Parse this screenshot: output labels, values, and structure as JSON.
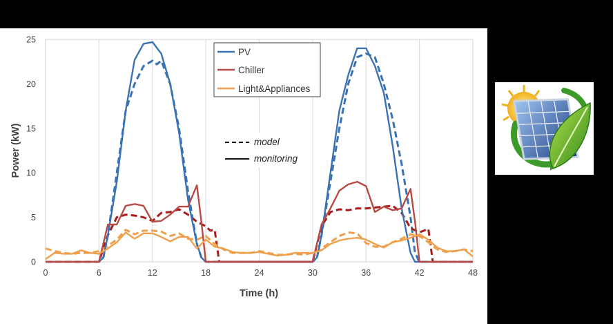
{
  "chart_data": {
    "type": "line",
    "xlabel": "Time (h)",
    "ylabel": "Power (kW)",
    "xlim": [
      0,
      48
    ],
    "ylim": [
      0,
      25
    ],
    "xticks": [
      0,
      6,
      12,
      18,
      24,
      30,
      36,
      42,
      48
    ],
    "yticks": [
      0,
      5,
      10,
      15,
      20,
      25
    ],
    "grid": "vertical",
    "legend_series": [
      "PV",
      "Chiller",
      "Light&Appliances"
    ],
    "legend_style": [
      "model",
      "monitoring"
    ],
    "series": [
      {
        "name": "PV",
        "style": "monitoring",
        "color": "#3a72b4",
        "x": [
          0,
          1,
          2,
          3,
          4,
          5,
          6,
          6.5,
          7,
          8,
          9,
          10,
          11,
          12,
          13,
          14,
          15,
          16,
          17,
          17.5,
          18,
          19,
          20,
          21,
          22,
          23,
          24,
          25,
          26,
          27,
          28,
          29,
          30,
          30.5,
          31,
          32,
          33,
          34,
          35,
          36,
          37,
          38,
          39,
          40,
          41,
          41.5,
          42,
          43,
          44,
          45,
          46,
          47,
          48
        ],
        "y": [
          0,
          0,
          0,
          0,
          0,
          0,
          0,
          0.5,
          3,
          9,
          17,
          22.7,
          24.5,
          24.7,
          23.4,
          20,
          14.5,
          7,
          2,
          0.5,
          0,
          0,
          0,
          0,
          0,
          0,
          0,
          0,
          0,
          0,
          0,
          0,
          0,
          0.5,
          3,
          10,
          17,
          21,
          24,
          24,
          22,
          19,
          13,
          6,
          1,
          0,
          0,
          0,
          0,
          0,
          0,
          0,
          0
        ]
      },
      {
        "name": "PV",
        "style": "model",
        "color": "#3a72b4",
        "x": [
          0,
          1,
          2,
          3,
          4,
          5,
          6,
          6.5,
          7,
          8,
          9,
          10,
          11,
          12,
          12.5,
          13,
          14,
          15,
          16,
          17,
          17.5,
          18,
          19,
          20,
          21,
          22,
          23,
          24,
          25,
          26,
          27,
          28,
          29,
          30,
          30.5,
          31,
          32,
          33,
          34,
          35,
          36,
          37,
          38,
          39,
          40,
          41,
          41.5,
          42,
          43,
          44,
          45,
          46,
          47,
          48
        ],
        "y": [
          0,
          0,
          0,
          0,
          0,
          0,
          0,
          0.5,
          3,
          10,
          17,
          20,
          22,
          22.6,
          22.2,
          22.6,
          20,
          15,
          8,
          2,
          0.5,
          0,
          0,
          0,
          0,
          0,
          0,
          0,
          0,
          0,
          0,
          0,
          0,
          0,
          0.5,
          3,
          9,
          15,
          20,
          23,
          23.4,
          23,
          20,
          16,
          11,
          5,
          1,
          0,
          0,
          0,
          0,
          0,
          0,
          0
        ]
      },
      {
        "name": "Chiller",
        "style": "monitoring",
        "color": "#b84a45",
        "x": [
          0,
          1,
          2,
          3,
          4,
          5,
          6,
          7,
          8,
          9,
          10,
          11,
          12,
          13,
          14,
          15,
          16,
          17,
          17.5,
          18,
          19,
          20,
          21,
          22,
          23,
          24,
          25,
          26,
          27,
          28,
          29,
          30,
          31,
          32,
          33,
          34,
          35,
          36,
          37,
          38,
          39,
          40,
          41,
          41.5,
          42,
          43,
          44,
          45,
          46,
          47,
          48
        ],
        "y": [
          0,
          0,
          0,
          0,
          0,
          0,
          0,
          4.2,
          4.2,
          6.3,
          6.5,
          6.3,
          4.5,
          4.6,
          5.3,
          6.2,
          6.2,
          8.6,
          4.5,
          0,
          0,
          0,
          0,
          0,
          0,
          0,
          0,
          0,
          0,
          0,
          0,
          0,
          4.2,
          6,
          8,
          8.7,
          9,
          8.5,
          5.6,
          6.2,
          5.8,
          6,
          8.2,
          4.5,
          0,
          0,
          0,
          0,
          0,
          0,
          0
        ]
      },
      {
        "name": "Chiller",
        "style": "model",
        "color": "#a81c1c",
        "x": [
          0,
          1,
          2,
          3,
          4,
          5,
          6,
          7,
          8,
          9,
          10,
          11,
          12,
          13,
          14,
          15,
          16,
          17,
          18,
          18.5,
          19,
          19.5,
          20,
          21,
          22,
          23,
          24,
          25,
          26,
          27,
          28,
          29,
          30,
          31,
          32,
          33,
          34,
          35,
          36,
          37,
          38,
          39,
          40,
          41,
          42,
          43,
          43.5,
          44,
          45,
          46,
          47,
          48
        ],
        "y": [
          0,
          0,
          0,
          0,
          0,
          0,
          0,
          3,
          5,
          5.3,
          5.2,
          5,
          4.6,
          5.5,
          5.6,
          5.9,
          5.3,
          4.5,
          4,
          3.5,
          3.6,
          0,
          0,
          0,
          0,
          0,
          0,
          0,
          0,
          0,
          0,
          0,
          0,
          4,
          5.6,
          5.9,
          5.8,
          6,
          6,
          6.1,
          6.2,
          6.3,
          5.5,
          3.8,
          3.3,
          3.7,
          0,
          0,
          0,
          0,
          0,
          0
        ]
      },
      {
        "name": "Light&Appliances",
        "style": "monitoring",
        "color": "#f0a04c",
        "x": [
          0,
          1,
          2,
          3,
          4,
          5,
          6,
          7,
          8,
          9,
          10,
          11,
          12,
          13,
          14,
          15,
          16,
          17,
          18,
          19,
          20,
          21,
          22,
          23,
          24,
          25,
          26,
          27,
          28,
          29,
          30,
          31,
          32,
          33,
          34,
          35,
          36,
          37,
          38,
          39,
          40,
          41,
          42,
          43,
          44,
          45,
          46,
          47,
          48
        ],
        "y": [
          0.3,
          1,
          0.9,
          0.9,
          1.3,
          1,
          0.9,
          1.5,
          2.2,
          3.3,
          2.6,
          3.2,
          3.2,
          2.8,
          2.3,
          2.8,
          2.8,
          1.5,
          2.5,
          1.7,
          1.5,
          1.1,
          1,
          1,
          1.1,
          0.9,
          0.7,
          0.8,
          1,
          1,
          1,
          1.3,
          2,
          2.4,
          2.6,
          2.7,
          2.5,
          2,
          1.6,
          2.2,
          2.4,
          2.7,
          3.1,
          2.5,
          1.6,
          1.2,
          1.2,
          1.4,
          0.6
        ]
      },
      {
        "name": "Light&Appliances",
        "style": "model",
        "color": "#f0a04c",
        "x": [
          0,
          1,
          2,
          3,
          4,
          5,
          6,
          7,
          8,
          9,
          10,
          11,
          12,
          13,
          14,
          15,
          16,
          17,
          18,
          19,
          20,
          21,
          22,
          23,
          24,
          25,
          26,
          27,
          28,
          29,
          30,
          31,
          32,
          33,
          34,
          35,
          36,
          37,
          38,
          39,
          40,
          41,
          42,
          43,
          44,
          45,
          46,
          47,
          48
        ],
        "y": [
          1.5,
          1.2,
          1,
          0.9,
          1,
          1,
          1.2,
          1.8,
          2.5,
          3.6,
          3.1,
          3.5,
          3.5,
          3.4,
          2.9,
          3.2,
          2.6,
          2.5,
          2.9,
          2,
          1.4,
          1,
          1,
          1,
          1.2,
          1,
          0.8,
          0.8,
          0.9,
          0.8,
          1,
          1.5,
          2.2,
          2.9,
          3.3,
          3.2,
          2.1,
          1.7,
          1.7,
          2.2,
          2.6,
          3.1,
          2.9,
          2.2,
          1.4,
          1.1,
          1.2,
          1.4,
          1.2
        ]
      }
    ]
  },
  "colors": {
    "pv": "#3a72b4",
    "chiller_monitoring": "#b84a45",
    "chiller_model": "#a81c1c",
    "light": "#f0a04c"
  },
  "logo": {
    "icon": "solar-panel-leaf-sun-icon"
  }
}
